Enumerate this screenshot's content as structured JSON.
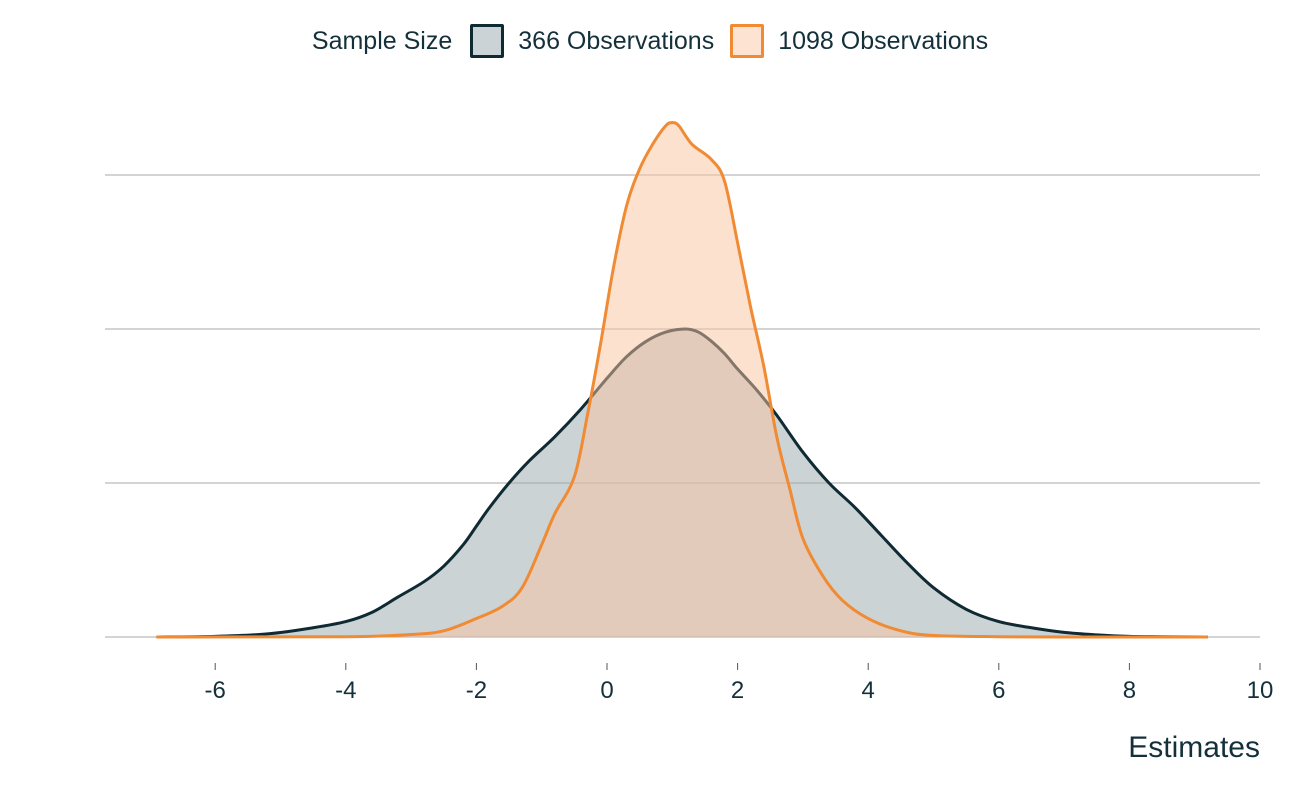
{
  "chart_data": {
    "type": "area",
    "xlabel": "Estimates",
    "ylabel": "",
    "xlim": [
      -7.5,
      10
    ],
    "ylim": [
      0,
      0.165
    ],
    "x_ticks": [
      -6,
      -4,
      -2,
      0,
      2,
      4,
      6,
      8,
      10
    ],
    "y_gridlines": [
      0,
      0.05,
      0.1,
      0.15
    ],
    "grid": "horizontal",
    "legend": {
      "title": "Sample Size",
      "placement": "top-center"
    },
    "series": [
      {
        "name": "366 Observations",
        "stroke": "#0f2a33",
        "fill": "#97a7ac",
        "fill_opacity": 0.5,
        "x": [
          -6.9,
          -6,
          -5.2,
          -4.5,
          -4,
          -3.6,
          -3.2,
          -2.8,
          -2.5,
          -2.2,
          -2,
          -1.8,
          -1.5,
          -1.2,
          -0.8,
          -0.4,
          0,
          0.3,
          0.6,
          0.9,
          1.2,
          1.4,
          1.6,
          1.8,
          2,
          2.3,
          2.6,
          3,
          3.4,
          3.8,
          4.2,
          4.6,
          5,
          5.5,
          6,
          6.5,
          7,
          7.5,
          8,
          8.5,
          9.2
        ],
        "y": [
          0,
          0.0002,
          0.001,
          0.003,
          0.005,
          0.008,
          0.013,
          0.018,
          0.023,
          0.03,
          0.036,
          0.042,
          0.05,
          0.057,
          0.065,
          0.074,
          0.084,
          0.091,
          0.096,
          0.099,
          0.1,
          0.099,
          0.096,
          0.092,
          0.087,
          0.08,
          0.072,
          0.06,
          0.05,
          0.042,
          0.033,
          0.024,
          0.016,
          0.009,
          0.005,
          0.003,
          0.0015,
          0.0007,
          0.0002,
          0.0001,
          0
        ]
      },
      {
        "name": "1098 Observations",
        "stroke": "#f08a33",
        "fill": "#f9c4a0",
        "fill_opacity": 0.5,
        "x": [
          -6.9,
          -4,
          -3,
          -2.5,
          -2,
          -1.6,
          -1.3,
          -1,
          -0.8,
          -0.5,
          -0.3,
          -0.1,
          0.1,
          0.3,
          0.5,
          0.7,
          0.9,
          1,
          1.1,
          1.3,
          1.6,
          1.8,
          2,
          2.2,
          2.4,
          2.6,
          2.8,
          3,
          3.3,
          3.6,
          4,
          4.5,
          5,
          6,
          7,
          9.2
        ],
        "y": [
          0,
          0.0001,
          0.0008,
          0.002,
          0.006,
          0.01,
          0.016,
          0.03,
          0.04,
          0.052,
          0.072,
          0.095,
          0.12,
          0.14,
          0.152,
          0.16,
          0.166,
          0.167,
          0.166,
          0.16,
          0.155,
          0.148,
          0.128,
          0.107,
          0.088,
          0.065,
          0.048,
          0.032,
          0.02,
          0.012,
          0.006,
          0.002,
          0.0005,
          0.0001,
          0,
          0
        ]
      }
    ]
  }
}
